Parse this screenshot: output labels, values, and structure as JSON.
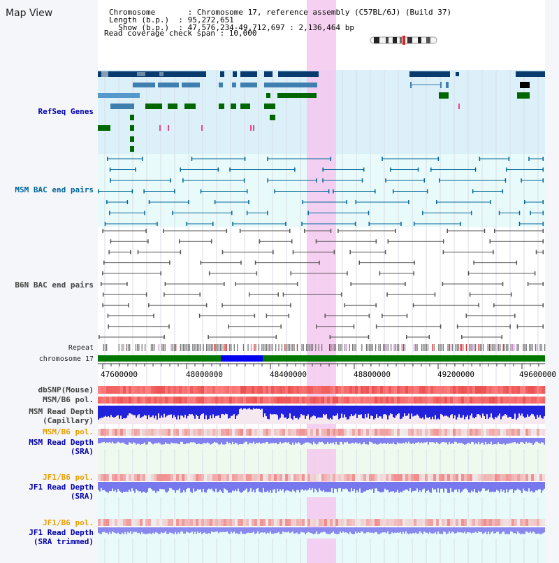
{
  "header": {
    "title": "Map View",
    "info_lines": [
      "Chromosome       : Chromosome 17, reference assembly (C57BL/6J) (Build 37)",
      "Length (b.p.)  : 95,272,651",
      "  Show (b.p.)  : 47,576,234-49,712,697 : 2,136,464 bp",
      "Read coverage check span : 10,000"
    ]
  },
  "tracks": {
    "refseq": "RefSeq Genes",
    "msm_bac": "MSM BAC end pairs",
    "b6n_bac": "B6N BAC end pairs",
    "repeat": "Repeat",
    "chromosome": "chromosome 17",
    "dbsnp": "dbSNP(Mouse)",
    "msm_pol_1": "MSM/B6 pol.",
    "msm_rd_cap_1": "MSM Read Depth",
    "msm_rd_cap_2": "(Capillary)",
    "msm_pol_2": "MSM/B6 pol.",
    "msm_rd_sra_1": "MSM Read Depth",
    "msm_rd_sra_2": "(SRA)",
    "jf1_pol_1": "JF1/B6 pol.",
    "jf1_rd_sra_1": "JF1 Read Depth",
    "jf1_rd_sra_2": "(SRA)",
    "jf1_pol_2": "JF1/B6 pol.",
    "jf1_rd_trim_1": "JF1 Read Depth",
    "jf1_rd_trim_2": "(SRA trimmed)"
  },
  "ruler": {
    "ticks": [
      "47600000",
      "48000000",
      "48400000",
      "48800000",
      "49200000",
      "49600000"
    ]
  },
  "colors": {
    "title_blue": "#0000aa",
    "msm_label": "#006699",
    "gray_label": "#333333",
    "orange_label": "#e8a000",
    "refseq_band": "#dcf0fa",
    "msm_band": "#e8fafa",
    "highlight": "#f5c8ee",
    "chromosome_green": "#007700",
    "chromosome_blue": "#0000ee"
  }
}
